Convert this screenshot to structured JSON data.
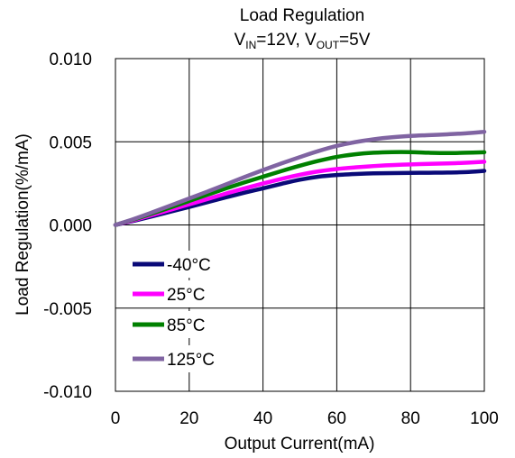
{
  "chart_data": {
    "type": "line",
    "title": "Load Regulation",
    "subtitle": {
      "v": "V",
      "in_sub": "IN",
      "eq1": "=12V, ",
      "out_sub": "OUT",
      "eq2": "=5V"
    },
    "xlabel": "Output Current(mA)",
    "ylabel": "Load Regulation(%/mA)",
    "xlim": [
      0,
      100
    ],
    "ylim": [
      -0.01,
      0.01
    ],
    "x_ticks": [
      "0",
      "20",
      "40",
      "60",
      "80",
      "100"
    ],
    "y_ticks": [
      "0.010",
      "0.005",
      "0.000",
      "-0.005",
      "-0.010"
    ],
    "grid": true,
    "legend_position": "lower-left",
    "x": [
      0,
      5,
      10,
      15,
      20,
      25,
      30,
      35,
      40,
      45,
      50,
      55,
      60,
      65,
      70,
      75,
      80,
      85,
      90,
      95,
      100
    ],
    "series": [
      {
        "name": "-40°C",
        "color": "#0a0a78",
        "values": [
          0,
          0.00025,
          0.00052,
          0.0008,
          0.00108,
          0.00137,
          0.00166,
          0.00194,
          0.0022,
          0.00247,
          0.00272,
          0.0029,
          0.003,
          0.00306,
          0.0031,
          0.00312,
          0.00313,
          0.00314,
          0.00315,
          0.00318,
          0.00325
        ]
      },
      {
        "name": "25°C",
        "color": "#ff00ff",
        "values": [
          0,
          0.00029,
          0.0006,
          0.00092,
          0.00124,
          0.00156,
          0.00189,
          0.0022,
          0.00249,
          0.00277,
          0.00302,
          0.00322,
          0.00336,
          0.00346,
          0.00354,
          0.0036,
          0.00364,
          0.00367,
          0.0037,
          0.00374,
          0.0038
        ]
      },
      {
        "name": "85°C",
        "color": "#008000",
        "values": [
          0,
          0.00033,
          0.00069,
          0.00106,
          0.00144,
          0.00182,
          0.0022,
          0.00256,
          0.0029,
          0.00324,
          0.00356,
          0.00385,
          0.00409,
          0.00425,
          0.00434,
          0.00438,
          0.00438,
          0.00434,
          0.00432,
          0.00434,
          0.00437
        ]
      },
      {
        "name": "125°C",
        "color": "#8064a2",
        "values": [
          0,
          0.00036,
          0.00076,
          0.00117,
          0.00159,
          0.00201,
          0.00244,
          0.00288,
          0.0033,
          0.0037,
          0.00408,
          0.00444,
          0.00475,
          0.00498,
          0.00515,
          0.00527,
          0.00535,
          0.0054,
          0.00545,
          0.00551,
          0.0056
        ]
      }
    ]
  }
}
